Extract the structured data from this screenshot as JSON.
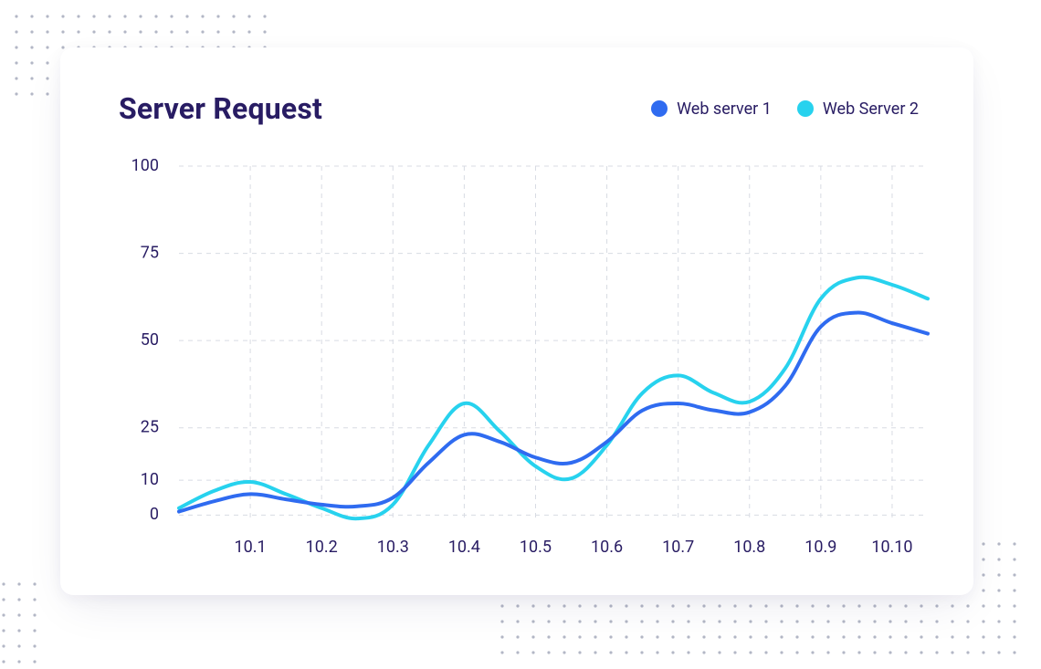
{
  "title": "Server Request",
  "legend": {
    "series1": {
      "label": "Web server 1",
      "color": "#2f6bf0"
    },
    "series2": {
      "label": "Web Server 2",
      "color": "#27d2ee"
    }
  },
  "chart": {
    "type": "line",
    "background_color": "#ffffff",
    "grid_color": "#d8dbe3",
    "grid_dash": "5 5",
    "axis_label_color": "#281c63",
    "axis_label_fontsize": 18,
    "title_color": "#281c63",
    "title_fontsize": 32,
    "title_fontweight": 700,
    "line_width": 4,
    "smooth": true,
    "xlim": [
      0,
      10.5
    ],
    "ylim": [
      -2,
      100
    ],
    "y_ticks": [
      0,
      10,
      25,
      50,
      75,
      100
    ],
    "x_ticks": [
      1,
      2,
      3,
      4,
      5,
      6,
      7,
      8,
      9,
      10
    ],
    "x_tick_labels": [
      "10.1",
      "10.2",
      "10.3",
      "10.4",
      "10.5",
      "10.6",
      "10.7",
      "10.8",
      "10.9",
      "10.10"
    ],
    "series": [
      {
        "name": "Web server 1",
        "color": "#2f6bf0",
        "points": [
          [
            0.0,
            1.0
          ],
          [
            0.5,
            4.0
          ],
          [
            1.0,
            6.0
          ],
          [
            1.5,
            4.5
          ],
          [
            2.0,
            3.0
          ],
          [
            2.5,
            2.5
          ],
          [
            3.0,
            5.0
          ],
          [
            3.5,
            15.0
          ],
          [
            4.0,
            23.0
          ],
          [
            4.5,
            21.0
          ],
          [
            5.0,
            16.5
          ],
          [
            5.5,
            15.0
          ],
          [
            6.0,
            21.0
          ],
          [
            6.5,
            30.0
          ],
          [
            7.0,
            32.0
          ],
          [
            7.5,
            30.0
          ],
          [
            8.0,
            29.5
          ],
          [
            8.5,
            37.0
          ],
          [
            9.0,
            54.0
          ],
          [
            9.5,
            58.0
          ],
          [
            10.0,
            55.0
          ],
          [
            10.5,
            52.0
          ]
        ]
      },
      {
        "name": "Web Server 2",
        "color": "#27d2ee",
        "points": [
          [
            0.0,
            2.0
          ],
          [
            0.5,
            7.0
          ],
          [
            1.0,
            9.5
          ],
          [
            1.5,
            6.0
          ],
          [
            2.0,
            2.0
          ],
          [
            2.5,
            -1.0
          ],
          [
            3.0,
            3.0
          ],
          [
            3.5,
            20.0
          ],
          [
            4.0,
            32.0
          ],
          [
            4.5,
            24.0
          ],
          [
            5.0,
            14.0
          ],
          [
            5.5,
            10.5
          ],
          [
            6.0,
            20.0
          ],
          [
            6.5,
            35.0
          ],
          [
            7.0,
            40.0
          ],
          [
            7.5,
            35.0
          ],
          [
            8.0,
            32.5
          ],
          [
            8.5,
            42.0
          ],
          [
            9.0,
            62.0
          ],
          [
            9.5,
            68.0
          ],
          [
            10.0,
            66.0
          ],
          [
            10.5,
            62.0
          ]
        ]
      }
    ]
  },
  "decor": {
    "dot_color": "#b3b7c6",
    "dot_radius": 1.6,
    "dot_step": 17
  }
}
